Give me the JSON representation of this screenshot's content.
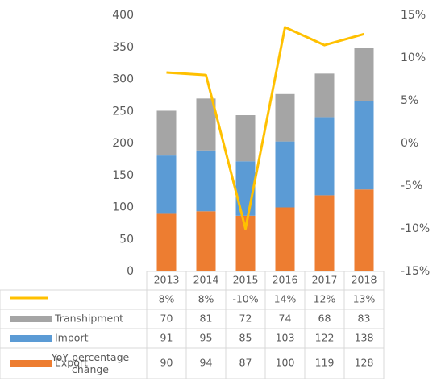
{
  "chart_data": {
    "type": "bar",
    "categories": [
      "2013",
      "2014",
      "2015",
      "2016",
      "2017",
      "2018"
    ],
    "series": [
      {
        "name": "Export",
        "color": "#ed7d31",
        "values": [
          90,
          94,
          87,
          100,
          119,
          128
        ]
      },
      {
        "name": "Import",
        "color": "#5b9bd5",
        "values": [
          91,
          95,
          85,
          103,
          122,
          138
        ]
      },
      {
        "name": "Transhipment",
        "color": "#a5a5a5",
        "values": [
          70,
          81,
          72,
          74,
          68,
          83
        ]
      },
      {
        "name": "YoY percentage change",
        "color": "#ffc000",
        "type": "line",
        "axis": "y2",
        "values": [
          8.3,
          8.0,
          -10,
          13.6,
          11.5,
          12.8
        ],
        "value_labels": [
          "8%",
          "8%",
          "-10%",
          "14%",
          "12%",
          "13%"
        ]
      }
    ],
    "stacked": true,
    "ylim": [
      0,
      400
    ],
    "yticks": [
      0,
      50,
      100,
      150,
      200,
      250,
      300,
      350,
      400
    ],
    "y2lim": [
      -15,
      15
    ],
    "y2ticks": [
      {
        "value": -15,
        "label": "-15%"
      },
      {
        "value": -10,
        "label": "-10%"
      },
      {
        "value": -5,
        "label": "-5%"
      },
      {
        "value": 0,
        "label": "0%"
      },
      {
        "value": 5,
        "label": "5%"
      },
      {
        "value": 10,
        "label": "10%"
      },
      {
        "value": 15,
        "label": "15%"
      }
    ],
    "data_table": true
  }
}
